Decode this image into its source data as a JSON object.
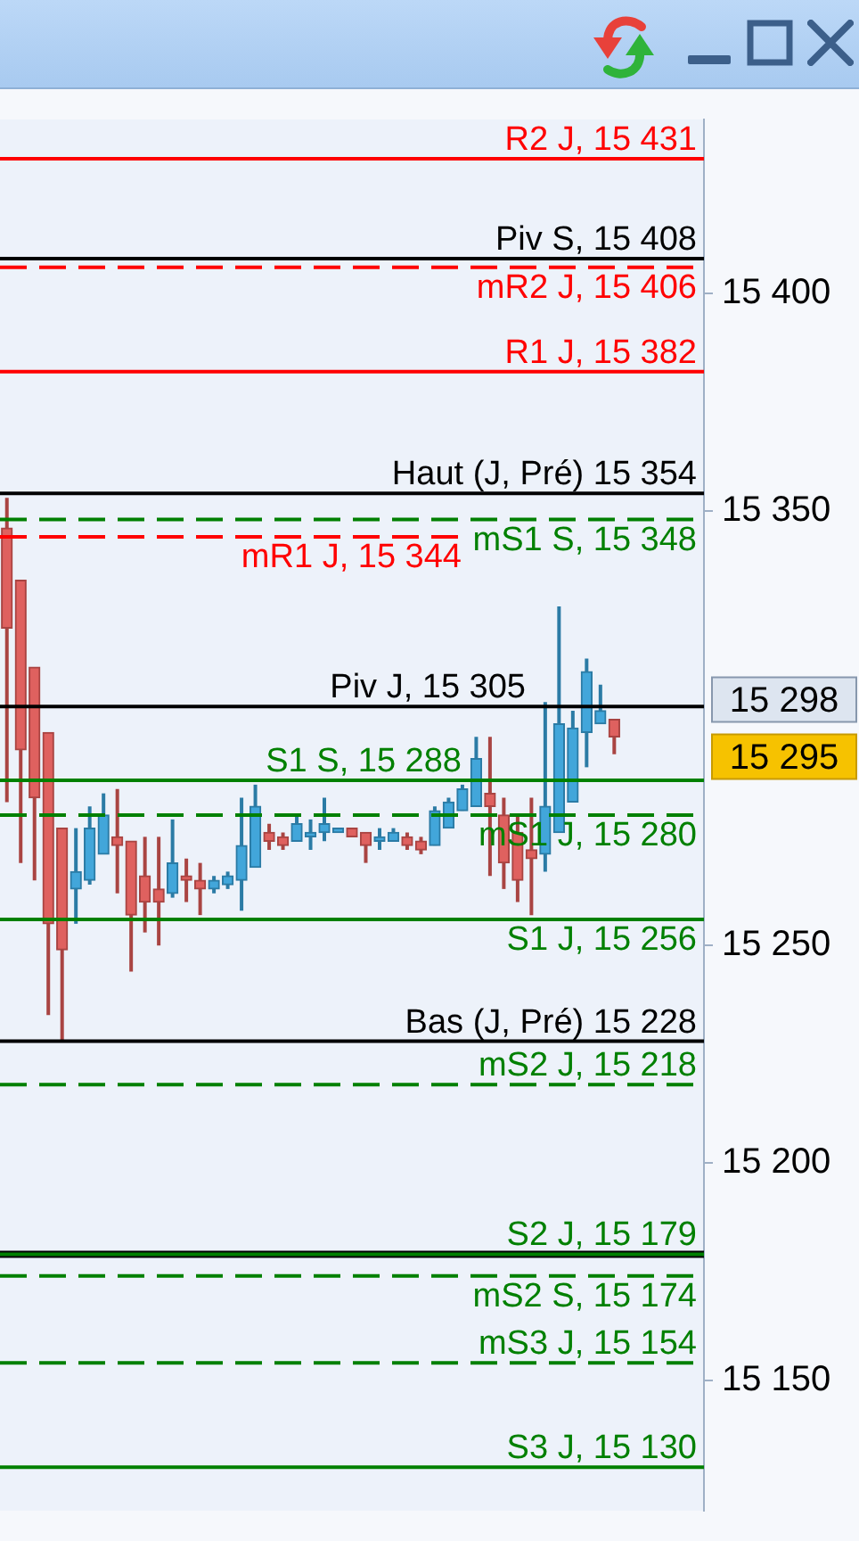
{
  "chart_data": {
    "type": "candlestick",
    "categories": [
      null,
      null,
      null,
      null,
      null,
      null,
      null,
      null,
      null,
      null,
      null,
      null,
      null,
      null,
      null,
      null,
      null,
      null,
      null,
      null,
      null,
      null,
      null,
      null,
      null,
      null,
      null,
      null,
      null,
      null,
      null,
      null,
      null,
      null,
      null,
      null,
      null,
      null,
      null,
      null,
      null,
      null,
      null,
      null,
      null,
      null,
      null,
      null,
      null,
      null,
      null
    ],
    "ohlc": [
      [
        15346,
        15353,
        15283,
        15323
      ],
      [
        15334,
        15334,
        15269,
        15295
      ],
      [
        15314,
        15314,
        15265,
        15284
      ],
      [
        15299,
        15299,
        15234,
        15255
      ],
      [
        15277,
        15277,
        15228,
        15249
      ],
      [
        15263,
        15277,
        15255,
        15267
      ],
      [
        15265,
        15282,
        15264,
        15277
      ],
      [
        15271,
        15285,
        15271,
        15280
      ],
      [
        15275,
        15286,
        15262,
        15273
      ],
      [
        15274,
        15274,
        15244,
        15257
      ],
      [
        15266,
        15275,
        15253,
        15260
      ],
      [
        15263,
        15275,
        15250,
        15260
      ],
      [
        15262,
        15279,
        15261,
        15269
      ],
      [
        15266,
        15270,
        15260,
        15265
      ],
      [
        15265,
        15269,
        15257,
        15263
      ],
      [
        15263,
        15266,
        15262,
        15265
      ],
      [
        15264,
        15267,
        15263,
        15266
      ],
      [
        15265,
        15284,
        15258,
        15273
      ],
      [
        15268,
        15287,
        15268,
        15282
      ],
      [
        15276,
        15278,
        15272,
        15274
      ],
      [
        15275,
        15276,
        15272,
        15273
      ],
      [
        15274,
        15280,
        15274,
        15278
      ],
      [
        15275,
        15279,
        15272,
        15276
      ],
      [
        15276,
        15284,
        15274,
        15278
      ],
      [
        15276,
        15277,
        15276,
        15277
      ],
      [
        15277,
        15277,
        15275,
        15275
      ],
      [
        15276,
        15276,
        15269,
        15273
      ],
      [
        15274,
        15277,
        15272,
        15275
      ],
      [
        15274,
        15277,
        15274,
        15276
      ],
      [
        15275,
        15276,
        15272,
        15273
      ],
      [
        15274,
        15275,
        15271,
        15272
      ],
      [
        15273,
        15282,
        15273,
        15281
      ],
      [
        15277,
        15284,
        15277,
        15283
      ],
      [
        15281,
        15287,
        15281,
        15286
      ],
      [
        15282,
        15298,
        15282,
        15293
      ],
      [
        15285,
        15298,
        15266,
        15282
      ],
      [
        15280,
        15284,
        15263,
        15269
      ],
      [
        15276,
        15280,
        15260,
        15265
      ],
      [
        15272,
        15284,
        15257,
        15270
      ],
      [
        15271,
        15306,
        15267,
        15282
      ],
      [
        15276,
        15328,
        15276,
        15301
      ],
      [
        15283,
        15304,
        15283,
        15300
      ],
      [
        15299,
        15316,
        15291,
        15313
      ],
      [
        15301,
        15310,
        15301,
        15304
      ],
      [
        15302,
        15302,
        15294,
        15298
      ],
      null,
      null,
      null,
      null,
      null,
      null
    ],
    "colors": [
      "#a94442",
      "#a94442",
      "#a94442",
      "#a94442",
      "#a94442",
      "#2b7ba5",
      "#2b7ba5",
      "#2b7ba5",
      "#a94442",
      "#a94442",
      "#a94442",
      "#a94442",
      "#2b7ba5",
      "#a94442",
      "#a94442",
      "#2b7ba5",
      "#2b7ba5",
      "#2b7ba5",
      "#2b7ba5",
      "#a94442",
      "#a94442",
      "#2b7ba5",
      "#2b7ba5",
      "#2b7ba5",
      "#2b7ba5",
      "#a94442",
      "#a94442",
      "#2b7ba5",
      "#2b7ba5",
      "#a94442",
      "#a94442",
      "#2b7ba5",
      "#2b7ba5",
      "#2b7ba5",
      "#2b7ba5",
      "#a94442",
      "#a94442",
      "#a94442",
      "#a94442",
      "#2b7ba5",
      "#2b7ba5",
      "#2b7ba5",
      "#2b7ba5",
      "#2b7ba5",
      "#a94442",
      null,
      null,
      null,
      null,
      null,
      null
    ],
    "ylim": [
      15120,
      15440
    ],
    "yticks": [
      {
        "value": 15150,
        "label": "15 150"
      },
      {
        "value": 15200,
        "label": "15 200"
      },
      {
        "value": 15250,
        "label": "15 250"
      },
      {
        "value": 15350,
        "label": "15 350"
      },
      {
        "value": 15400,
        "label": "15 400"
      }
    ],
    "tick_labels": "y",
    "ref_lines": [
      {
        "axis": "y",
        "value": 15431,
        "label": "R2 J, 15 431",
        "color": "#ff0000",
        "line_style": "solid"
      },
      {
        "axis": "y",
        "value": 15408,
        "label": "Piv S, 15 408",
        "color": "#000000",
        "line_style": "solid"
      },
      {
        "axis": "y",
        "value": 15406,
        "label": "mR2 J, 15 406",
        "color": "#ff0000",
        "line_style": "dashed"
      },
      {
        "axis": "y",
        "value": 15382,
        "label": "R1 J, 15 382",
        "color": "#ff0000",
        "line_style": "solid"
      },
      {
        "axis": "y",
        "value": 15354,
        "label": "Haut (J, Pré) 15 354",
        "color": "#000000",
        "line_style": "solid"
      },
      {
        "axis": "y",
        "value": 15348,
        "label": "mS1 S, 15 348",
        "color": "#008000",
        "line_style": "dashed"
      },
      {
        "axis": "y",
        "value": 15344,
        "label": "mR1 J, 15 344",
        "color": "#ff0000",
        "line_style": "dashed"
      },
      {
        "axis": "y",
        "value": 15305,
        "label": "Piv J, 15 305",
        "color": "#000000",
        "line_style": "solid"
      },
      {
        "axis": "y",
        "value": 15288,
        "label": "S1 S, 15 288",
        "color": "#008000",
        "line_style": "solid"
      },
      {
        "axis": "y",
        "value": 15280,
        "label": "mS1 J, 15 280",
        "color": "#008000",
        "line_style": "dashed"
      },
      {
        "axis": "y",
        "value": 15256,
        "label": "S1 J, 15 256",
        "color": "#008000",
        "line_style": "solid"
      },
      {
        "axis": "y",
        "value": 15228,
        "label": "Bas (J, Pré) 15 228",
        "color": "#000000",
        "line_style": "solid"
      },
      {
        "axis": "y",
        "value": 15218,
        "label": "mS2 J, 15 218",
        "color": "#008000",
        "line_style": "dashed"
      },
      {
        "axis": "y",
        "value": 15179,
        "color": "#000000",
        "line_style": "solid"
      },
      {
        "axis": "y",
        "value": 15179,
        "label": "S2 J, 15 179",
        "color": "#008000",
        "line_style": "solid"
      },
      {
        "axis": "y",
        "value": 15174,
        "label": "mS2 S, 15 174",
        "color": "#008000",
        "line_style": "dashed"
      },
      {
        "axis": "y",
        "value": 15154,
        "label": "mS3 J, 15 154",
        "color": "#008000",
        "line_style": "dashed"
      },
      {
        "axis": "y",
        "value": 15130,
        "label": "S3 J, 15 130",
        "color": "#008000",
        "line_style": "solid"
      }
    ],
    "annotations": [
      "15 298",
      "15 295"
    ]
  }
}
